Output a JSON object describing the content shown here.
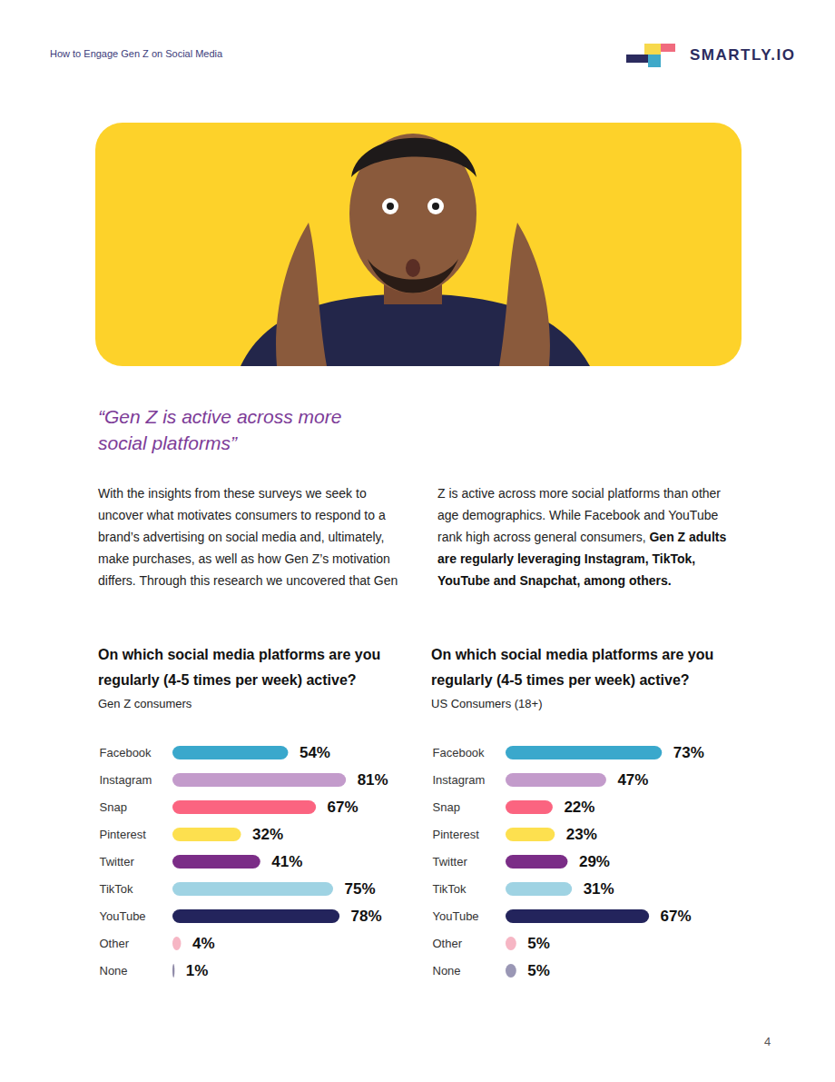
{
  "header": {
    "title": "How to Engage Gen Z on Social Media",
    "logo": "SMARTLY.IO"
  },
  "quote": "“Gen Z is active across more social platforms”",
  "body": {
    "text": "With the insights from these surveys we seek to uncover what motivates consumers to respond to a brand’s advertising on social media and, ultimately, make purchases, as well as how Gen Z’s motivation differs. Through this research we uncovered that Gen Z is active across more social platforms than other age demographics. While Facebook and YouTube rank high across general consumers, ",
    "bold": "Gen Z adults are regularly leveraging Instagram, TikTok, YouTube and Snapchat, among others."
  },
  "chart_data": [
    {
      "type": "bar",
      "orientation": "horizontal",
      "title": "On which social media platforms are you regularly (4-5 times per week) active?",
      "subtitle": "Gen Z consumers",
      "categories": [
        "Facebook",
        "Instagram",
        "Snap",
        "Pinterest",
        "Twitter",
        "TikTok",
        "YouTube",
        "Other",
        "None"
      ],
      "values": [
        54,
        81,
        67,
        32,
        41,
        75,
        78,
        4,
        1
      ],
      "value_labels": [
        "54%",
        "81%",
        "67%",
        "32%",
        "41%",
        "75%",
        "78%",
        "4%",
        "1%"
      ],
      "colors": [
        "#3aa8cc",
        "#c39bcb",
        "#fb6480",
        "#fde04f",
        "#7b2d87",
        "#9fd3e3",
        "#23245c",
        "#f6b6c4",
        "#8f8aa8"
      ],
      "xlim": [
        0,
        100
      ],
      "tick_labels": false,
      "data_labels": true
    },
    {
      "type": "bar",
      "orientation": "horizontal",
      "title": "On which social media platforms are you regularly (4-5 times per week) active?",
      "subtitle": "US Consumers (18+)",
      "categories": [
        "Facebook",
        "Instagram",
        "Snap",
        "Pinterest",
        "Twitter",
        "TikTok",
        "YouTube",
        "Other",
        "None"
      ],
      "values": [
        73,
        47,
        22,
        23,
        29,
        31,
        67,
        5,
        5
      ],
      "value_labels": [
        "73%",
        "47%",
        "22%",
        "23%",
        "29%",
        "31%",
        "67%",
        "5%",
        "5%"
      ],
      "colors": [
        "#3aa8cc",
        "#c39bcb",
        "#fb6480",
        "#fde04f",
        "#7b2d87",
        "#9fd3e3",
        "#23245c",
        "#f6b6c4",
        "#9a97b5"
      ],
      "xlim": [
        0,
        100
      ],
      "tick_labels": false,
      "data_labels": true
    }
  ],
  "page_number": 4
}
